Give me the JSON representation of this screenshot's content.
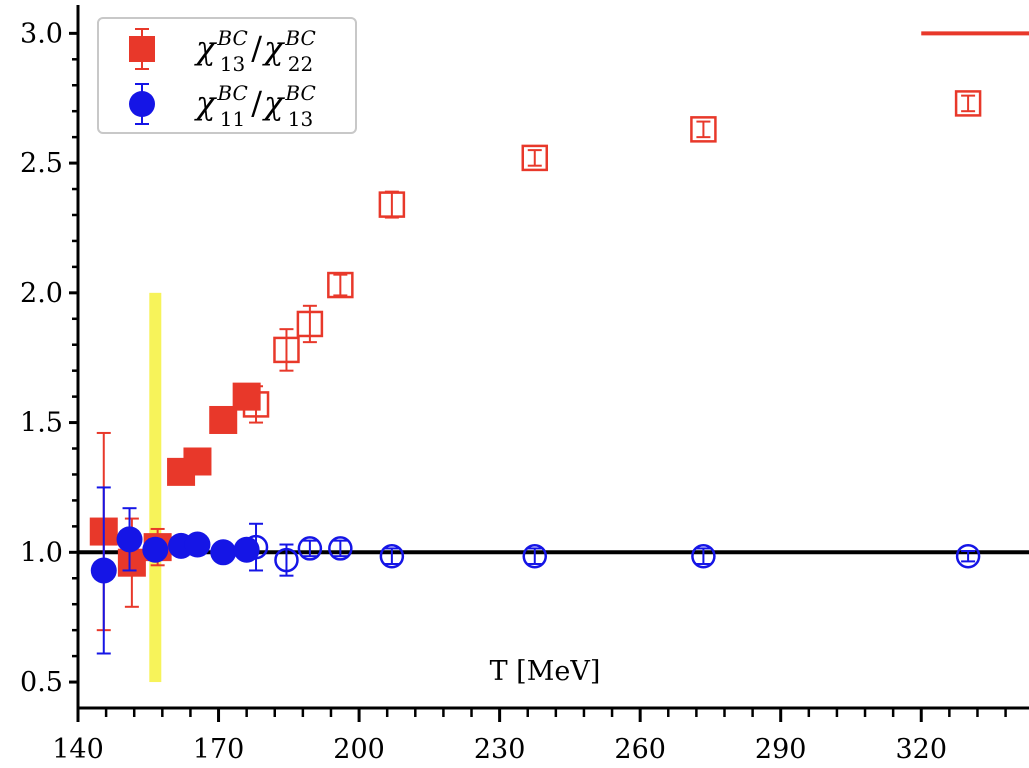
{
  "chart_data": {
    "type": "scatter",
    "xlabel": "T [MeV]",
    "ylabel": "",
    "xlim": [
      140,
      343
    ],
    "ylim": [
      0.4,
      3.09
    ],
    "x_ticks": [
      140,
      170,
      200,
      230,
      260,
      290,
      320
    ],
    "x_tick_labels": [
      "140",
      "170",
      "200",
      "230",
      "260",
      "290",
      "320"
    ],
    "y_ticks": [
      0.5,
      1.0,
      1.5,
      2.0,
      2.5,
      3.0
    ],
    "y_tick_labels": [
      "0.5",
      "1.0",
      "1.5",
      "2.0",
      "2.5",
      "3.0"
    ],
    "grid": false,
    "legend_placement": "top-left",
    "reference_line": {
      "y": 1.0,
      "color": "#000000"
    },
    "upper_limit_segment": {
      "x": [
        320,
        343
      ],
      "y": 3.0,
      "color": "#e8382a"
    },
    "band": {
      "x": 156.5,
      "y": [
        0.5,
        2.0
      ],
      "color": "#f7f35a"
    },
    "series": [
      {
        "legend_label": {
          "num": "χ",
          "num_sup": "BC",
          "num_sub": "13",
          "den": "χ",
          "den_sup": "BC",
          "den_sub": "22"
        },
        "marker": "square",
        "color": "#e8382a",
        "filled_points": [
          {
            "x": 145.5,
            "y": 1.08,
            "err": 0.38
          },
          {
            "x": 151.5,
            "y": 0.96,
            "err": 0.17
          },
          {
            "x": 157.0,
            "y": 1.02,
            "err": 0.07
          },
          {
            "x": 162.0,
            "y": 1.31,
            "err": 0.02
          },
          {
            "x": 165.5,
            "y": 1.35,
            "err": 0.02
          },
          {
            "x": 171.0,
            "y": 1.51,
            "err": 0.02
          },
          {
            "x": 176.0,
            "y": 1.6,
            "err": 0.03
          }
        ],
        "open_points": [
          {
            "x": 178.0,
            "y": 1.57,
            "err": 0.07
          },
          {
            "x": 184.5,
            "y": 1.78,
            "err": 0.08
          },
          {
            "x": 189.5,
            "y": 1.88,
            "err": 0.07
          },
          {
            "x": 196.0,
            "y": 2.03,
            "err": 0.04
          },
          {
            "x": 207.0,
            "y": 2.34,
            "err": 0.05
          },
          {
            "x": 237.5,
            "y": 2.52,
            "err": 0.03
          },
          {
            "x": 273.5,
            "y": 2.63,
            "err": 0.03
          },
          {
            "x": 330.0,
            "y": 2.73,
            "err": 0.03
          }
        ]
      },
      {
        "legend_label": {
          "num": "χ",
          "num_sup": "BC",
          "num_sub": "11",
          "den": "χ",
          "den_sup": "BC",
          "den_sub": "13"
        },
        "marker": "circle",
        "color": "#1515e6",
        "filled_points": [
          {
            "x": 145.5,
            "y": 0.93,
            "err": 0.32
          },
          {
            "x": 151.0,
            "y": 1.05,
            "err": 0.12
          },
          {
            "x": 156.5,
            "y": 1.01,
            "err": 0.04
          },
          {
            "x": 162.0,
            "y": 1.025,
            "err": 0.02
          },
          {
            "x": 165.5,
            "y": 1.03,
            "err": 0.02
          },
          {
            "x": 171.0,
            "y": 1.0,
            "err": 0.02
          },
          {
            "x": 176.0,
            "y": 1.01,
            "err": 0.02
          }
        ],
        "open_points": [
          {
            "x": 178.0,
            "y": 1.02,
            "err": 0.09
          },
          {
            "x": 184.5,
            "y": 0.97,
            "err": 0.06
          },
          {
            "x": 189.5,
            "y": 1.015,
            "err": 0.03
          },
          {
            "x": 196.0,
            "y": 1.015,
            "err": 0.03
          },
          {
            "x": 207.0,
            "y": 0.985,
            "err": 0.03
          },
          {
            "x": 237.5,
            "y": 0.985,
            "err": 0.03
          },
          {
            "x": 273.5,
            "y": 0.985,
            "err": 0.03
          },
          {
            "x": 330.0,
            "y": 0.985,
            "err": 0.02
          }
        ]
      }
    ]
  }
}
